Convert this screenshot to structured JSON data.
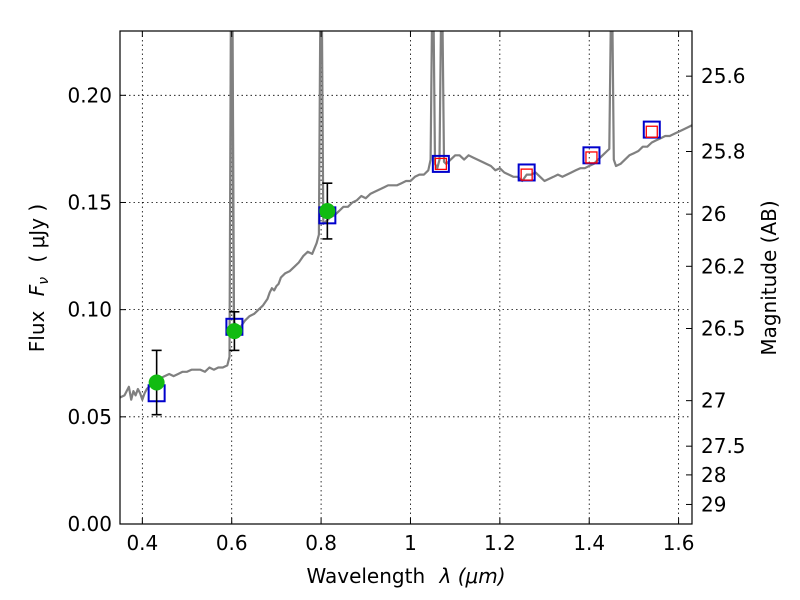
{
  "chart_data": {
    "type": "line",
    "xlabel_main": "Wavelength",
    "xlabel_symbol": "λ (μm)",
    "ylabel_main": "Flux",
    "ylabel_symbol": "F",
    "ylabel_subscript": "ν",
    "ylabel_unit": "( μJy )",
    "y2label": "Magnitude (AB)",
    "xlim": [
      0.35,
      1.63
    ],
    "ylim": [
      0.0,
      0.23
    ],
    "grid": true,
    "grid_style": "dotted",
    "x_ticks": [
      {
        "value": 0.4,
        "label": "0.4"
      },
      {
        "value": 0.6,
        "label": "0.6"
      },
      {
        "value": 0.8,
        "label": "0.8"
      },
      {
        "value": 1.0,
        "label": "1"
      },
      {
        "value": 1.2,
        "label": "1.2"
      },
      {
        "value": 1.4,
        "label": "1.4"
      },
      {
        "value": 1.6,
        "label": "1.6"
      }
    ],
    "y_ticks": [
      {
        "value": 0.0,
        "label": "0.00"
      },
      {
        "value": 0.05,
        "label": "0.05"
      },
      {
        "value": 0.1,
        "label": "0.10"
      },
      {
        "value": 0.15,
        "label": "0.15"
      },
      {
        "value": 0.2,
        "label": "0.20"
      }
    ],
    "y2_ticks": [
      {
        "value": 25.6,
        "label": "25.6"
      },
      {
        "value": 25.8,
        "label": "25.8"
      },
      {
        "value": 26.0,
        "label": "26"
      },
      {
        "value": 26.2,
        "label": "26.2"
      },
      {
        "value": 26.5,
        "label": "26.5"
      },
      {
        "value": 27.0,
        "label": "27"
      },
      {
        "value": 27.5,
        "label": "27.5"
      },
      {
        "value": 28.0,
        "label": "28"
      },
      {
        "value": 29.0,
        "label": "29"
      }
    ],
    "spectrum": {
      "color": "#808080",
      "x": [
        0.35,
        0.36,
        0.37,
        0.375,
        0.38,
        0.385,
        0.39,
        0.395,
        0.4,
        0.405,
        0.41,
        0.415,
        0.42,
        0.43,
        0.44,
        0.45,
        0.46,
        0.47,
        0.48,
        0.49,
        0.5,
        0.51,
        0.52,
        0.53,
        0.54,
        0.55,
        0.56,
        0.57,
        0.58,
        0.59,
        0.595,
        0.598,
        0.6,
        0.602,
        0.605,
        0.61,
        0.62,
        0.63,
        0.64,
        0.65,
        0.66,
        0.67,
        0.68,
        0.685,
        0.69,
        0.695,
        0.7,
        0.705,
        0.71,
        0.72,
        0.73,
        0.74,
        0.75,
        0.76,
        0.77,
        0.78,
        0.79,
        0.795,
        0.798,
        0.8,
        0.802,
        0.805,
        0.81,
        0.82,
        0.83,
        0.84,
        0.85,
        0.86,
        0.87,
        0.88,
        0.89,
        0.9,
        0.91,
        0.92,
        0.93,
        0.94,
        0.95,
        0.96,
        0.97,
        0.98,
        0.99,
        1.0,
        1.01,
        1.02,
        1.03,
        1.04,
        1.045,
        1.048,
        1.05,
        1.052,
        1.055,
        1.06,
        1.065,
        1.068,
        1.07,
        1.072,
        1.075,
        1.08,
        1.09,
        1.1,
        1.11,
        1.12,
        1.13,
        1.14,
        1.15,
        1.16,
        1.17,
        1.18,
        1.19,
        1.2,
        1.21,
        1.22,
        1.23,
        1.24,
        1.25,
        1.26,
        1.27,
        1.28,
        1.29,
        1.3,
        1.31,
        1.32,
        1.33,
        1.34,
        1.35,
        1.36,
        1.37,
        1.38,
        1.39,
        1.4,
        1.41,
        1.42,
        1.43,
        1.44,
        1.445,
        1.448,
        1.45,
        1.452,
        1.455,
        1.46,
        1.47,
        1.48,
        1.49,
        1.5,
        1.51,
        1.52,
        1.53,
        1.54,
        1.55,
        1.56,
        1.57,
        1.58,
        1.59,
        1.6,
        1.61,
        1.62,
        1.63
      ],
      "y": [
        0.059,
        0.06,
        0.064,
        0.058,
        0.062,
        0.06,
        0.063,
        0.061,
        0.058,
        0.061,
        0.063,
        0.064,
        0.066,
        0.067,
        0.068,
        0.069,
        0.07,
        0.069,
        0.07,
        0.071,
        0.071,
        0.072,
        0.072,
        0.072,
        0.071,
        0.073,
        0.072,
        0.073,
        0.073,
        0.074,
        0.078,
        0.23,
        0.23,
        0.23,
        0.092,
        0.09,
        0.092,
        0.095,
        0.097,
        0.098,
        0.1,
        0.102,
        0.105,
        0.108,
        0.11,
        0.109,
        0.111,
        0.112,
        0.115,
        0.117,
        0.118,
        0.12,
        0.122,
        0.125,
        0.127,
        0.126,
        0.131,
        0.135,
        0.23,
        0.23,
        0.23,
        0.14,
        0.141,
        0.143,
        0.144,
        0.146,
        0.148,
        0.148,
        0.15,
        0.151,
        0.153,
        0.152,
        0.154,
        0.155,
        0.156,
        0.157,
        0.158,
        0.158,
        0.158,
        0.159,
        0.16,
        0.16,
        0.162,
        0.163,
        0.163,
        0.165,
        0.17,
        0.23,
        0.23,
        0.23,
        0.168,
        0.166,
        0.17,
        0.23,
        0.23,
        0.23,
        0.169,
        0.168,
        0.17,
        0.172,
        0.172,
        0.17,
        0.172,
        0.171,
        0.17,
        0.169,
        0.168,
        0.167,
        0.165,
        0.166,
        0.164,
        0.163,
        0.162,
        0.162,
        0.16,
        0.163,
        0.163,
        0.164,
        0.162,
        0.16,
        0.161,
        0.162,
        0.163,
        0.162,
        0.163,
        0.164,
        0.165,
        0.166,
        0.166,
        0.167,
        0.168,
        0.17,
        0.172,
        0.174,
        0.175,
        0.23,
        0.23,
        0.23,
        0.17,
        0.167,
        0.168,
        0.17,
        0.172,
        0.173,
        0.174,
        0.176,
        0.176,
        0.178,
        0.179,
        0.18,
        0.181,
        0.181,
        0.182,
        0.183,
        0.184,
        0.185,
        0.186
      ],
      "extra_lines": [
        {
          "x": [
            0.6,
            0.605,
            0.61,
            0.615
          ],
          "y": [
            0.23,
            0.094,
            0.093,
            0.092
          ]
        }
      ]
    },
    "model_photometry": {
      "marker": "square",
      "edge_color": "#0000cc",
      "points": [
        {
          "x": 0.432,
          "y": 0.061
        },
        {
          "x": 0.606,
          "y": 0.092
        },
        {
          "x": 0.814,
          "y": 0.144
        },
        {
          "x": 1.068,
          "y": 0.168
        },
        {
          "x": 1.26,
          "y": 0.164
        },
        {
          "x": 1.405,
          "y": 0.172
        },
        {
          "x": 1.54,
          "y": 0.184
        }
      ]
    },
    "ir_model_photometry": {
      "marker": "square",
      "edge_color": "#ff0000",
      "points": [
        {
          "x": 1.068,
          "y": 0.168
        },
        {
          "x": 1.26,
          "y": 0.163
        },
        {
          "x": 1.405,
          "y": 0.171
        },
        {
          "x": 1.54,
          "y": 0.183
        }
      ]
    },
    "observed": {
      "marker": "circle",
      "color": "#11bb11",
      "points": [
        {
          "x": 0.432,
          "y": 0.066,
          "err": 0.015
        },
        {
          "x": 0.606,
          "y": 0.09,
          "err": 0.009
        },
        {
          "x": 0.814,
          "y": 0.146,
          "err": 0.013
        }
      ]
    }
  }
}
